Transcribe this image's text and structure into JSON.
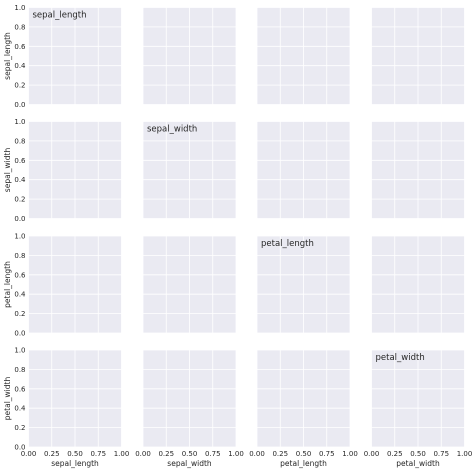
{
  "chart_data": {
    "type": "scatter",
    "title": "",
    "variables": [
      "sepal_length",
      "sepal_width",
      "petal_length",
      "petal_width"
    ],
    "xlim": [
      0.0,
      1.0
    ],
    "ylim": [
      0.0,
      1.0
    ],
    "ticks": [
      0.0,
      0.2,
      0.4,
      0.6,
      0.8,
      1.0
    ],
    "x_ticks": [
      0.0,
      0.25,
      0.5,
      0.75,
      1.0
    ],
    "y_ticks": [
      0.0,
      0.2,
      0.4,
      0.6,
      0.8,
      1.0
    ],
    "y_tick_labels": [
      "0.0",
      "0.2",
      "0.4",
      "0.6",
      "0.8",
      "1.0"
    ],
    "x_tick_labels": [
      "0.00",
      "0.25",
      "0.50",
      "0.75",
      "1.00"
    ],
    "grid": true,
    "series": [],
    "colors": {
      "panel_background": "#eaeaf2",
      "grid": "#ffffff",
      "text": "#262626"
    }
  }
}
